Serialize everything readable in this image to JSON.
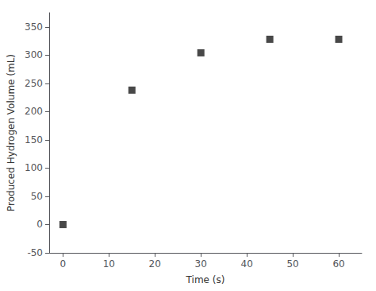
{
  "chart_data": {
    "type": "scatter",
    "xlabel": "Time (s)",
    "ylabel": "Produced Hydrogen Volume (mL)",
    "x": [
      0,
      15,
      30,
      45,
      60
    ],
    "values": [
      0,
      238,
      304,
      328,
      328
    ],
    "color": "#1a1a1a",
    "marker": "square",
    "xlim": [
      -3,
      65
    ],
    "ylim": [
      -50,
      375
    ],
    "xticks": [
      0,
      10,
      20,
      30,
      40,
      50,
      60
    ],
    "yticks": [
      -50,
      0,
      50,
      100,
      150,
      200,
      250,
      300,
      350
    ],
    "grid": false
  }
}
